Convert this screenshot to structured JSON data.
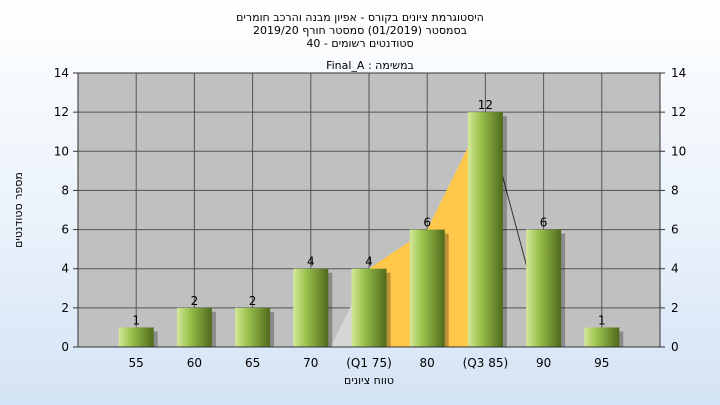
{
  "chart_data": {
    "type": "bar",
    "title_lines": [
      "היסטוגרמת ציונים בקורס - אפיון מבנה והרכב חומרים",
      "בסמסטר  (01/2019)  סמסטר חורף 2019/20",
      "סטודנטים רשומים - 40"
    ],
    "categories": [
      "55",
      "60",
      "65",
      "70",
      "(Q1 75)",
      "80",
      "(Q3 85)",
      "90",
      "95"
    ],
    "values": [
      1,
      2,
      2,
      4,
      4,
      6,
      12,
      6,
      1
    ],
    "data_labels": [
      "1",
      "2",
      "2",
      "4",
      "4",
      "6",
      "12",
      "6",
      "1"
    ],
    "annotation": "במשימה : Final_A",
    "xlabel": "טווח ציונים",
    "ylabel": "מספר סטודנטים",
    "ylim": [
      0,
      14
    ],
    "yticks": [
      0,
      2,
      4,
      6,
      8,
      10,
      12,
      14
    ],
    "grid": true,
    "legend": "none",
    "secondary_y_axis": true,
    "iqr_shading": {
      "from_category": "(Q1 75)",
      "to_category": "(Q3 85)"
    },
    "colors": {
      "plot_background": "#c0c0c0",
      "bar_light": "#d4e89a",
      "bar_mid": "#9cc34e",
      "bar_dark": "#4f6a1c",
      "iqr_fill": "#ffc84a",
      "gray_wedge": "#d6d6d6",
      "gridline": "#555555"
    }
  }
}
